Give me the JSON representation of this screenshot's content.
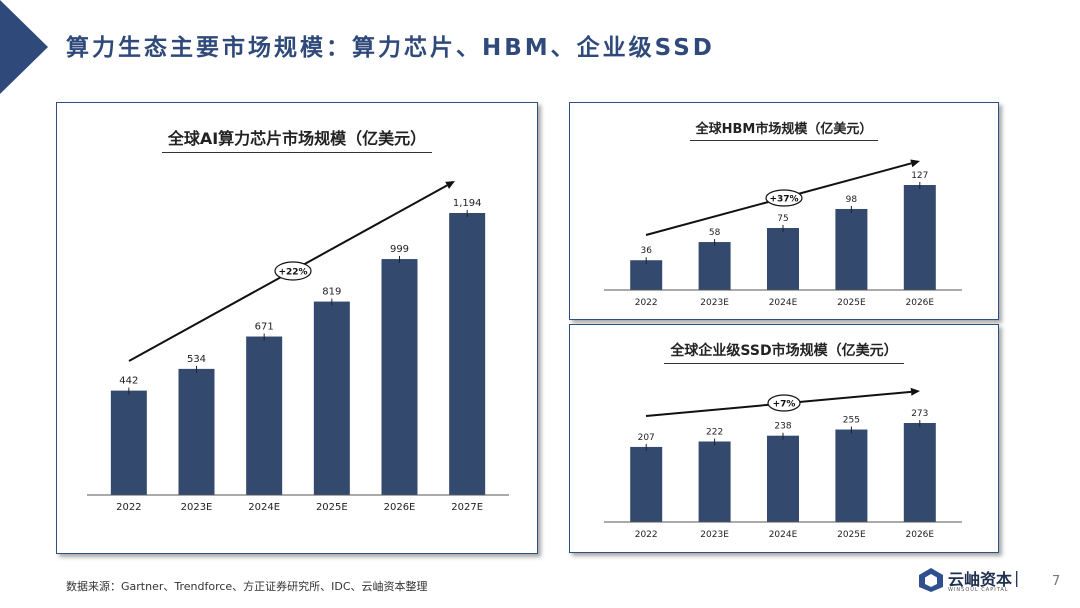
{
  "header": {
    "title": "算力生态主要市场规模：算力芯片、HBM、企业级SSD"
  },
  "colors": {
    "bar": "#34496e",
    "accent": "#2f4a7a",
    "triangle": "#2f4a7a"
  },
  "chart_data": [
    {
      "type": "bar",
      "title": "全球AI算力芯片市场规模（亿美元）",
      "categories": [
        "2022",
        "2023E",
        "2024E",
        "2025E",
        "2026E",
        "2027E"
      ],
      "values": [
        442,
        534,
        671,
        819,
        999,
        1194
      ],
      "value_labels": [
        "442",
        "534",
        "671",
        "819",
        "999",
        "1,194"
      ],
      "growth_label": "+22%",
      "ylim": [
        0,
        1400
      ]
    },
    {
      "type": "bar",
      "title": "全球HBM市场规模（亿美元）",
      "categories": [
        "2022",
        "2023E",
        "2024E",
        "2025E",
        "2026E"
      ],
      "values": [
        36,
        58,
        75,
        98,
        127
      ],
      "value_labels": [
        "36",
        "58",
        "75",
        "98",
        "127"
      ],
      "growth_label": "+37%",
      "ylim": [
        0,
        140
      ]
    },
    {
      "type": "bar",
      "title": "全球企业级SSD市场规模（亿美元）",
      "categories": [
        "2022",
        "2023E",
        "2024E",
        "2025E",
        "2026E"
      ],
      "values": [
        207,
        222,
        238,
        255,
        273
      ],
      "value_labels": [
        "207",
        "222",
        "238",
        "255",
        "273"
      ],
      "growth_label": "+7%",
      "ylim": [
        0,
        420
      ]
    }
  ],
  "footer": {
    "source": "数据来源：Gartner、Trendforce、方正证券研究所、IDC、云岫资本整理",
    "page_number": "7"
  },
  "logo": {
    "name": "云岫资本",
    "subtitle": "WINSOUL CAPITAL",
    "separator": "|"
  }
}
